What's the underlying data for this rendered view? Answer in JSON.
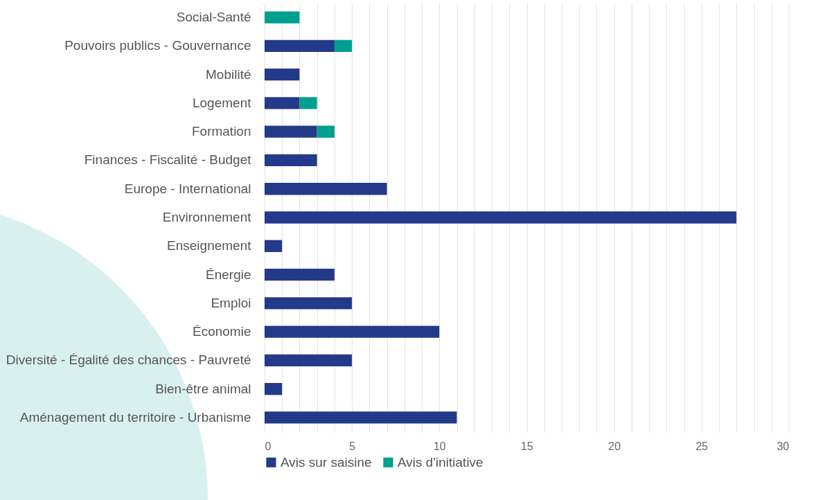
{
  "chart_data": {
    "type": "bar",
    "orientation": "horizontal",
    "stacked": true,
    "legend": "bottom",
    "grid": "x",
    "categories": [
      "Social-Santé",
      "Pouvoirs publics - Gouvernance",
      "Mobilité",
      "Logement",
      "Formation",
      "Finances - Fiscalité - Budget",
      "Europe - International",
      "Environnement",
      "Enseignement",
      "Énergie",
      "Emploi",
      "Économie",
      "Diversité - Égalité des chances - Pauvreté",
      "Bien-être animal",
      "Aménagement du territoire - Urbanisme"
    ],
    "series": [
      {
        "name": "Avis sur saisine",
        "color": "#233a8b",
        "values": [
          0,
          4,
          2,
          2,
          3,
          3,
          7,
          27,
          1,
          4,
          5,
          10,
          5,
          1,
          11
        ]
      },
      {
        "name": "Avis d'initiative",
        "color": "#00a08e",
        "values": [
          2,
          1,
          0,
          1,
          1,
          0,
          0,
          0,
          0,
          0,
          0,
          0,
          0,
          0,
          0
        ]
      }
    ],
    "xlim": [
      0,
      30
    ],
    "xticks": [
      0,
      {
        "value": 1,
        "label": null
      },
      {
        "value": 2,
        "label": null
      },
      {
        "value": 3,
        "label": null
      },
      {
        "value": 4,
        "label": null
      },
      5,
      {
        "value": 6,
        "label": null
      },
      {
        "value": 7,
        "label": null
      },
      {
        "value": 8,
        "label": null
      },
      {
        "value": 9,
        "label": null
      },
      10,
      {
        "value": 11,
        "label": null
      },
      {
        "value": 12,
        "label": null
      },
      {
        "value": 13,
        "label": null
      },
      {
        "value": 14,
        "label": null
      },
      15,
      {
        "value": 16,
        "label": null
      },
      {
        "value": 17,
        "label": null
      },
      {
        "value": 18,
        "label": null
      },
      {
        "value": 19,
        "label": null
      },
      20,
      {
        "value": 21,
        "label": null
      },
      {
        "value": 22,
        "label": null
      },
      {
        "value": 23,
        "label": null
      },
      {
        "value": 24,
        "label": null
      },
      25,
      {
        "value": 26,
        "label": null
      },
      {
        "value": 27,
        "label": null
      },
      {
        "value": 28,
        "label": null
      },
      {
        "value": 29,
        "label": null
      },
      30
    ]
  }
}
